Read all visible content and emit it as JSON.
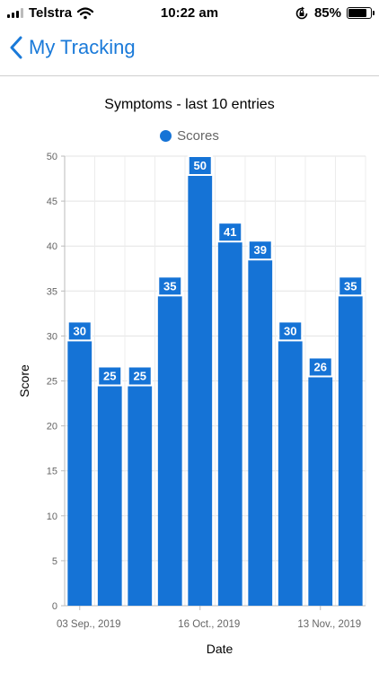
{
  "status_bar": {
    "carrier": "Telstra",
    "time": "10:22 am",
    "battery_percent_label": "85%",
    "battery_level": 0.85,
    "icons": [
      "signal-bars-icon",
      "wifi-icon",
      "orientation-lock-icon",
      "battery-icon"
    ]
  },
  "nav": {
    "back_label": "My Tracking",
    "back_icon": "chevron-left-icon",
    "accent_color": "#1a7ad9"
  },
  "chart_data": {
    "type": "bar",
    "title": "Symptoms - last 10 entries",
    "xlabel": "Date",
    "ylabel": "Score",
    "ylim": [
      0,
      50
    ],
    "y_ticks": [
      0,
      5,
      10,
      15,
      20,
      25,
      30,
      35,
      40,
      45,
      50
    ],
    "x_tick_labels": [
      "03 Sep., 2019",
      "16 Oct., 2019",
      "13 Nov., 2019"
    ],
    "series": [
      {
        "name": "Scores",
        "color": "#1573d6",
        "values": [
          30,
          25,
          25,
          35,
          50,
          41,
          39,
          30,
          26,
          35
        ]
      }
    ],
    "grid": true,
    "legend_position": "top-center",
    "data_labels": true
  }
}
